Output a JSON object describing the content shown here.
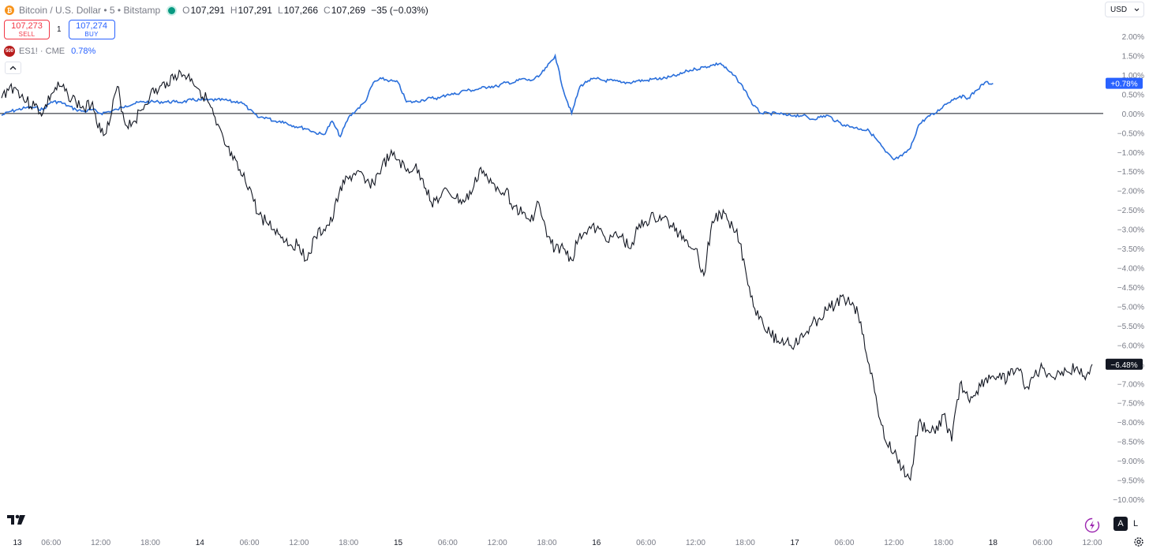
{
  "header": {
    "symbol_title": "Bitcoin / U.S. Dollar • 5 • Bitstamp",
    "ohlc": [
      {
        "key": "O",
        "value": "107,291"
      },
      {
        "key": "H",
        "value": "107,291"
      },
      {
        "key": "L",
        "value": "107,266"
      },
      {
        "key": "C",
        "value": "107,269"
      }
    ],
    "change": "−35 (−0.03%)",
    "sell_price": "107,273",
    "sell_label": "SELL",
    "spread": "1",
    "buy_price": "107,274",
    "buy_label": "BUY",
    "compare_symbol": "ES1! · CME",
    "compare_icon_text": "500",
    "compare_value": "0.78%",
    "currency": "USD",
    "btn_auto": "A",
    "btn_log": "L"
  },
  "icons": [
    "bitcoin-icon",
    "market-status-dot-icon",
    "es-symbol-icon",
    "collapse-chevron-icon",
    "chevron-down-icon",
    "tradingview-logo-icon",
    "lightning-icon",
    "settings-gear-icon"
  ],
  "colors": {
    "btc": "#131722",
    "es": "#2a6fdb",
    "baseline": "#131722",
    "sell": "#f23645",
    "buy": "#2962ff"
  },
  "chart_data": {
    "type": "line",
    "y_unit": "percent change",
    "ylim": [
      -10.0,
      2.0
    ],
    "y_ticks": [
      "2.00%",
      "1.50%",
      "1.00%",
      "0.50%",
      "0.00%",
      "−0.50%",
      "−1.00%",
      "−1.50%",
      "−2.00%",
      "−2.50%",
      "−3.00%",
      "−3.50%",
      "−4.00%",
      "−4.50%",
      "−5.00%",
      "−5.50%",
      "−6.00%",
      "−6.50%",
      "−7.00%",
      "−7.50%",
      "−8.00%",
      "−8.50%",
      "−9.00%",
      "−9.50%",
      "−10.00%"
    ],
    "x_ticks": [
      "13",
      "06:00",
      "12:00",
      "18:00",
      "14",
      "06:00",
      "12:00",
      "18:00",
      "15",
      "06:00",
      "12:00",
      "18:00",
      "16",
      "06:00",
      "12:00",
      "18:00",
      "17",
      "06:00",
      "12:00",
      "18:00",
      "18",
      "06:00",
      "12:00"
    ],
    "x_range_hours": [
      0,
      132
    ],
    "series": [
      {
        "name": "Bitcoin / U.S. Dollar",
        "last_label": "−6.48%",
        "x": [
          0,
          1,
          2,
          3,
          4,
          5,
          6,
          7,
          8,
          9,
          10,
          11,
          12,
          13,
          14,
          15,
          16,
          17,
          18,
          19,
          20,
          21,
          22,
          23,
          24,
          25,
          26,
          27,
          28,
          29,
          30,
          31,
          32,
          33,
          34,
          35,
          36,
          37,
          38,
          39,
          40,
          41,
          42,
          43,
          44,
          45,
          46,
          47,
          48,
          49,
          50,
          51,
          52,
          53,
          54,
          55,
          56,
          57,
          58,
          59,
          60,
          61,
          62,
          63,
          64,
          65,
          66,
          67,
          68,
          69,
          70,
          71,
          72,
          73,
          74,
          75,
          76,
          77,
          78,
          79,
          80,
          81,
          82,
          83,
          84,
          85,
          86,
          87,
          88,
          89,
          90,
          91,
          92,
          93,
          94,
          95,
          96,
          97,
          98,
          99,
          100,
          101,
          102,
          103,
          104,
          105,
          106,
          107,
          108,
          109,
          110,
          111,
          112,
          113,
          114,
          115,
          116,
          117,
          118,
          119,
          120,
          121,
          122,
          123,
          124,
          125,
          126,
          127,
          128,
          129,
          130,
          131,
          132
        ],
        "values": [
          0.4,
          0.7,
          0.6,
          0.3,
          0.2,
          0.0,
          0.5,
          0.7,
          0.5,
          0.3,
          0.1,
          0.3,
          -0.5,
          -0.3,
          0.7,
          -0.3,
          -0.2,
          0.1,
          0.5,
          0.6,
          0.8,
          1.0,
          1.0,
          0.9,
          0.6,
          0.3,
          -0.3,
          -0.8,
          -1.2,
          -1.6,
          -1.9,
          -2.6,
          -2.8,
          -3.0,
          -3.2,
          -3.4,
          -3.4,
          -3.8,
          -3.2,
          -3.0,
          -2.8,
          -1.9,
          -1.7,
          -1.5,
          -1.8,
          -1.8,
          -1.4,
          -1.1,
          -1.2,
          -1.5,
          -1.4,
          -1.7,
          -2.3,
          -2.2,
          -2.0,
          -2.2,
          -2.3,
          -2.0,
          -1.4,
          -1.8,
          -1.9,
          -2.0,
          -2.4,
          -2.6,
          -2.8,
          -2.3,
          -3.2,
          -3.5,
          -3.5,
          -3.8,
          -3.1,
          -3.0,
          -3.0,
          -3.2,
          -3.2,
          -3.2,
          -3.5,
          -3.0,
          -2.8,
          -2.7,
          -2.7,
          -2.9,
          -3.1,
          -3.3,
          -3.5,
          -4.2,
          -2.8,
          -2.6,
          -2.8,
          -3.0,
          -4.0,
          -5.0,
          -5.3,
          -5.7,
          -5.9,
          -5.9,
          -6.0,
          -5.8,
          -5.5,
          -5.3,
          -5.1,
          -4.9,
          -4.8,
          -4.9,
          -5.4,
          -6.5,
          -7.6,
          -8.5,
          -8.8,
          -9.2,
          -9.5,
          -8.0,
          -8.2,
          -8.3,
          -7.8,
          -8.5,
          -7.0,
          -7.4,
          -7.2,
          -6.9,
          -6.8,
          -6.9,
          -6.8,
          -6.6,
          -7.1,
          -6.8,
          -6.6,
          -6.8,
          -6.7,
          -6.7,
          -6.6,
          -6.8,
          -6.5
        ],
        "color": "#131722"
      },
      {
        "name": "ES1! · CME",
        "last_label": "+0.78%",
        "x": [
          0,
          1,
          2,
          3,
          4,
          5,
          6,
          7,
          8,
          9,
          10,
          11,
          12,
          13,
          14,
          15,
          16,
          17,
          18,
          19,
          20,
          21,
          22,
          23,
          24,
          25,
          26,
          27,
          28,
          29,
          30,
          31,
          32,
          33,
          34,
          35,
          36,
          37,
          38,
          39,
          40,
          41,
          42,
          43,
          44,
          45,
          46,
          47,
          48,
          49,
          50,
          51,
          52,
          53,
          54,
          55,
          56,
          57,
          58,
          59,
          60,
          61,
          62,
          63,
          64,
          65,
          66,
          67,
          68,
          69,
          70,
          71,
          72,
          73,
          74,
          75,
          76,
          77,
          78,
          79,
          80,
          81,
          82,
          83,
          84,
          85,
          86,
          87,
          88,
          89,
          90,
          91,
          92,
          93,
          94,
          95,
          96,
          97,
          98,
          99,
          100,
          101,
          102,
          103,
          104,
          105,
          106,
          107,
          108,
          109,
          110,
          111,
          112,
          113,
          114,
          115,
          116,
          117,
          118,
          119,
          120
        ],
        "values": [
          -0.05,
          0.05,
          0.1,
          0.15,
          0.15,
          0.1,
          0.3,
          0.3,
          0.2,
          0.1,
          0.05,
          0.1,
          0.0,
          0.05,
          0.1,
          0.2,
          0.25,
          0.3,
          0.3,
          0.3,
          0.3,
          0.3,
          0.3,
          0.35,
          0.35,
          0.35,
          0.35,
          0.35,
          0.3,
          0.3,
          0.1,
          -0.1,
          -0.1,
          -0.2,
          -0.2,
          -0.3,
          -0.35,
          -0.4,
          -0.5,
          -0.55,
          -0.2,
          -0.6,
          -0.1,
          0.1,
          0.3,
          0.8,
          0.9,
          0.85,
          0.8,
          0.3,
          0.3,
          0.35,
          0.4,
          0.4,
          0.5,
          0.5,
          0.6,
          0.6,
          0.65,
          0.7,
          0.7,
          0.8,
          0.8,
          0.9,
          0.85,
          0.95,
          1.2,
          1.5,
          0.6,
          0.0,
          0.7,
          0.85,
          0.9,
          0.85,
          0.85,
          0.8,
          0.8,
          0.85,
          0.85,
          0.9,
          0.9,
          0.95,
          1.0,
          1.1,
          1.15,
          1.2,
          1.25,
          1.3,
          1.1,
          0.9,
          0.6,
          0.2,
          0.0,
          0.0,
          0.0,
          -0.05,
          -0.05,
          -0.05,
          -0.15,
          -0.1,
          -0.05,
          -0.2,
          -0.3,
          -0.35,
          -0.4,
          -0.45,
          -0.7,
          -1.0,
          -1.2,
          -1.1,
          -0.9,
          -0.3,
          -0.1,
          0.0,
          0.2,
          0.35,
          0.45,
          0.4,
          0.6,
          0.8,
          0.78
        ],
        "color": "#2a6fdb"
      }
    ]
  }
}
